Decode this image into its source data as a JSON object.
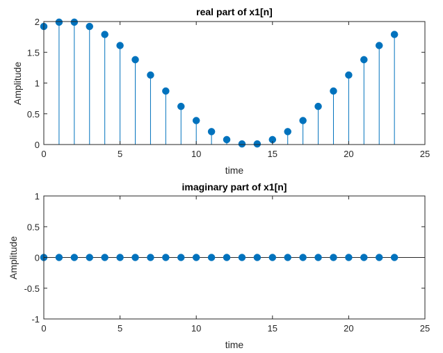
{
  "chart_data": [
    {
      "type": "stem",
      "title": "real part of x1[n]",
      "xlabel": "time",
      "ylabel": "Amplitude",
      "xlim": [
        0,
        25
      ],
      "ylim": [
        0,
        2
      ],
      "xticks": [
        0,
        5,
        10,
        15,
        20,
        25
      ],
      "yticks": [
        0,
        0.5,
        1,
        1.5,
        2
      ],
      "ytick_labels": [
        "0",
        "0.5",
        "1",
        "1.5",
        "2"
      ],
      "grid": false,
      "color": "#0072BD",
      "x": [
        0,
        1,
        2,
        3,
        4,
        5,
        6,
        7,
        8,
        9,
        10,
        11,
        12,
        13,
        14,
        15,
        16,
        17,
        18,
        19,
        20,
        21,
        22,
        23
      ],
      "values": [
        1.92,
        1.99,
        1.99,
        1.92,
        1.79,
        1.61,
        1.38,
        1.13,
        0.87,
        0.62,
        0.39,
        0.21,
        0.08,
        0.01,
        0.01,
        0.08,
        0.21,
        0.39,
        0.62,
        0.87,
        1.13,
        1.38,
        1.61,
        1.79
      ]
    },
    {
      "type": "stem",
      "title": "imaginary part of x1[n]",
      "xlabel": "time",
      "ylabel": "Amplitude",
      "xlim": [
        0,
        25
      ],
      "ylim": [
        -1,
        1
      ],
      "xticks": [
        0,
        5,
        10,
        15,
        20,
        25
      ],
      "yticks": [
        -1,
        -0.5,
        0,
        0.5,
        1
      ],
      "ytick_labels": [
        "-1",
        "-0.5",
        "0",
        "0.5",
        "1"
      ],
      "grid": false,
      "color": "#0072BD",
      "x": [
        0,
        1,
        2,
        3,
        4,
        5,
        6,
        7,
        8,
        9,
        10,
        11,
        12,
        13,
        14,
        15,
        16,
        17,
        18,
        19,
        20,
        21,
        22,
        23
      ],
      "values": [
        0,
        0,
        0,
        0,
        0,
        0,
        0,
        0,
        0,
        0,
        0,
        0,
        0,
        0,
        0,
        0,
        0,
        0,
        0,
        0,
        0,
        0,
        0,
        0
      ]
    }
  ]
}
